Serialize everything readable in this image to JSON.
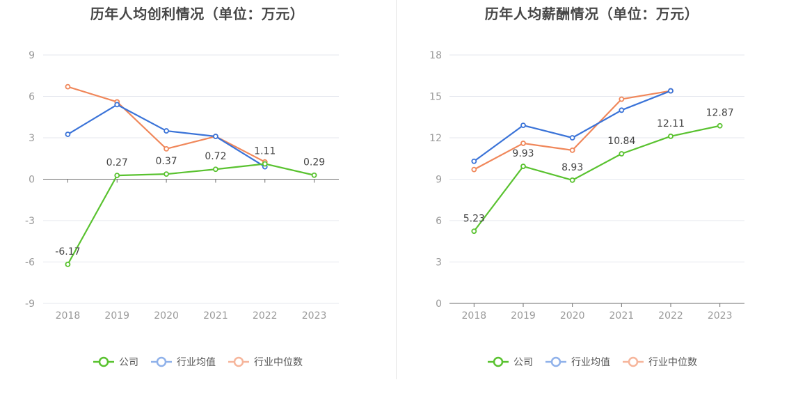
{
  "colors": {
    "company": "#59c22f",
    "industry_avg": "#3a73d8",
    "industry_median": "#f0875a",
    "legend_avg": "#8fb1ea",
    "legend_median": "#f6b59b"
  },
  "chart_data": [
    {
      "type": "line",
      "title": "历年人均创利情况（单位：万元）",
      "categories": [
        "2018",
        "2019",
        "2020",
        "2021",
        "2022",
        "2023"
      ],
      "ylim": [
        -9,
        9
      ],
      "yticks": [
        "9",
        "6",
        "3",
        "0",
        "-3",
        "-6",
        "-9"
      ],
      "grid": true,
      "legend_position": "bottom",
      "series": [
        {
          "name": "公司",
          "color_key": "company",
          "values": [
            -6.17,
            0.27,
            0.37,
            0.72,
            1.11,
            0.29
          ],
          "labels": [
            "-6.17",
            "0.27",
            "0.37",
            "0.72",
            "1.11",
            "0.29"
          ]
        },
        {
          "name": "行业均值",
          "color_key": "industry_avg",
          "values": [
            3.25,
            5.4,
            3.5,
            3.1,
            0.9,
            null
          ]
        },
        {
          "name": "行业中位数",
          "color_key": "industry_median",
          "values": [
            6.7,
            5.6,
            2.2,
            3.1,
            1.25,
            null
          ]
        }
      ]
    },
    {
      "type": "line",
      "title": "历年人均薪酬情况（单位：万元）",
      "categories": [
        "2018",
        "2019",
        "2020",
        "2021",
        "2022",
        "2023"
      ],
      "ylim": [
        0,
        18
      ],
      "yticks": [
        "18",
        "15",
        "12",
        "9",
        "6",
        "3",
        "0"
      ],
      "grid": true,
      "legend_position": "bottom",
      "series": [
        {
          "name": "公司",
          "color_key": "company",
          "values": [
            5.23,
            9.93,
            8.93,
            10.84,
            12.11,
            12.87
          ],
          "labels": [
            "5.23",
            "9.93",
            "8.93",
            "10.84",
            "12.11",
            "12.87"
          ]
        },
        {
          "name": "行业均值",
          "color_key": "industry_avg",
          "values": [
            10.3,
            12.9,
            12.0,
            14.0,
            15.4,
            null
          ]
        },
        {
          "name": "行业中位数",
          "color_key": "industry_median",
          "values": [
            9.7,
            11.6,
            11.1,
            14.8,
            15.4,
            null
          ]
        }
      ]
    }
  ]
}
